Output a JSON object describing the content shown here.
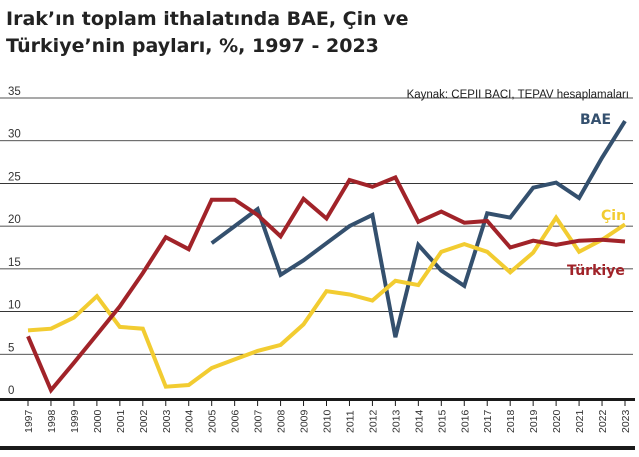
{
  "chart_data": {
    "type": "line",
    "title_line1": "Irak’ın toplam ithalatında BAE, Çin ve",
    "title_line2": "Türkiye’nin payları, %, 1997 - 2023",
    "source": "Kaynak: CEPII BACI, TEPAV hesaplamaları",
    "x": [
      1997,
      1998,
      1999,
      2000,
      2001,
      2002,
      2003,
      2004,
      2005,
      2006,
      2007,
      2008,
      2009,
      2010,
      2011,
      2012,
      2013,
      2014,
      2015,
      2016,
      2017,
      2018,
      2019,
      2020,
      2021,
      2022,
      2023
    ],
    "ylim": [
      0,
      35
    ],
    "yticks": [
      0,
      5,
      10,
      15,
      20,
      25,
      30,
      35
    ],
    "grid": true,
    "series": [
      {
        "name": "BAE",
        "color": "#34506e",
        "values": [
          null,
          null,
          null,
          null,
          null,
          null,
          null,
          null,
          18,
          20,
          22,
          14.3,
          16,
          18,
          20,
          21.3,
          7,
          17.8,
          14.8,
          13,
          21.5,
          21,
          24.5,
          25.1,
          23.3,
          28,
          32.3
        ]
      },
      {
        "name": "Çin",
        "color": "#f2cc31",
        "values": [
          7.8,
          8,
          9.3,
          11.8,
          8.2,
          8,
          1.2,
          1.4,
          3.4,
          4.4,
          5.4,
          6.1,
          8.5,
          12.4,
          12,
          11.3,
          13.6,
          13.1,
          17,
          17.9,
          17,
          14.6,
          16.9,
          21,
          17,
          18.4,
          20.2
        ]
      },
      {
        "name": "Türkiye",
        "color": "#a12329",
        "values": [
          7.1,
          0.8,
          4,
          7.3,
          10.6,
          14.5,
          18.7,
          17.3,
          23.1,
          23.1,
          21.3,
          18.8,
          23.2,
          20.9,
          25.4,
          24.6,
          25.7,
          20.5,
          21.7,
          20.4,
          20.6,
          17.5,
          18.3,
          17.8,
          18.3,
          18.4,
          18.2
        ]
      }
    ]
  }
}
